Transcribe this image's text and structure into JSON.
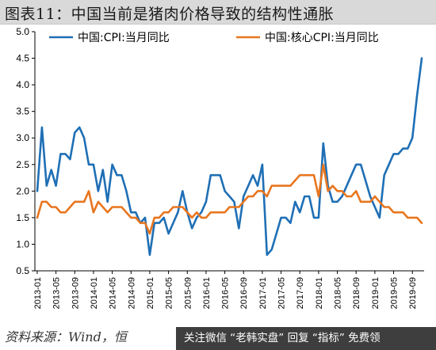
{
  "title": "图表11：中国当前是猪肉价格导致的结构性通胀",
  "source": "资料来源：Wind，恒",
  "watermark": "关注微信 “老韩实盘” 回复 “指标” 免费领",
  "chart_data": {
    "type": "line",
    "ylim": [
      0.5,
      5.0
    ],
    "yticks": [
      0.5,
      1.0,
      1.5,
      2.0,
      2.5,
      3.0,
      3.5,
      4.0,
      4.5,
      5.0
    ],
    "ytick_labels": [
      "0.5",
      "1.0",
      "1.5",
      "2.0",
      "2.5",
      "3.0",
      "3.5",
      "4.0",
      "4.5",
      "5.0"
    ],
    "xtick_labels": [
      "2013-01",
      "2013-05",
      "2013-09",
      "2014-01",
      "2014-05",
      "2014-09",
      "2015-01",
      "2015-05",
      "2015-09",
      "2016-01",
      "2016-05",
      "2016-09",
      "2017-01",
      "2017-05",
      "2017-09",
      "2018-01",
      "2018-05",
      "2018-09",
      "2019-01",
      "2019-05",
      "2019-09"
    ],
    "legend_position": "top",
    "colors": {
      "cpi": "#1f6fb5",
      "core": "#e8761f"
    },
    "series": [
      {
        "name": "中国:CPI:当月同比",
        "values": [
          2.0,
          3.2,
          2.1,
          2.4,
          2.1,
          2.7,
          2.7,
          2.6,
          3.1,
          3.2,
          3.0,
          2.5,
          2.5,
          2.0,
          2.4,
          1.8,
          2.5,
          2.3,
          2.3,
          2.0,
          1.6,
          1.6,
          1.4,
          1.5,
          0.8,
          1.4,
          1.4,
          1.5,
          1.2,
          1.4,
          1.6,
          2.0,
          1.6,
          1.3,
          1.5,
          1.6,
          1.8,
          2.3,
          2.3,
          2.3,
          2.0,
          1.9,
          1.8,
          1.3,
          1.9,
          2.1,
          2.3,
          2.1,
          2.5,
          0.8,
          0.9,
          1.2,
          1.5,
          1.5,
          1.4,
          1.8,
          1.6,
          1.9,
          1.9,
          1.5,
          1.5,
          2.9,
          2.1,
          1.8,
          1.8,
          1.9,
          2.1,
          2.3,
          2.5,
          2.5,
          2.2,
          1.9,
          1.7,
          1.5,
          2.3,
          2.5,
          2.7,
          2.7,
          2.8,
          2.8,
          3.0,
          3.8,
          4.5
        ]
      },
      {
        "name": "中国:核心CPI:当月同比",
        "values": [
          1.5,
          1.8,
          1.8,
          1.7,
          1.7,
          1.6,
          1.6,
          1.7,
          1.8,
          1.8,
          1.8,
          2.0,
          1.6,
          1.8,
          1.7,
          1.6,
          1.7,
          1.7,
          1.7,
          1.6,
          1.5,
          1.5,
          1.4,
          1.4,
          1.2,
          1.5,
          1.5,
          1.6,
          1.6,
          1.7,
          1.7,
          1.7,
          1.6,
          1.5,
          1.6,
          1.5,
          1.5,
          1.6,
          1.6,
          1.6,
          1.6,
          1.7,
          1.7,
          1.7,
          1.8,
          1.9,
          1.9,
          2.0,
          2.0,
          1.9,
          2.1,
          2.1,
          2.1,
          2.1,
          2.1,
          2.2,
          2.3,
          2.3,
          2.3,
          2.3,
          1.9,
          2.5,
          2.0,
          2.1,
          2.0,
          2.0,
          1.9,
          1.9,
          2.0,
          1.8,
          1.8,
          1.8,
          1.9,
          1.8,
          1.7,
          1.7,
          1.6,
          1.6,
          1.6,
          1.5,
          1.5,
          1.5,
          1.4
        ]
      }
    ]
  }
}
